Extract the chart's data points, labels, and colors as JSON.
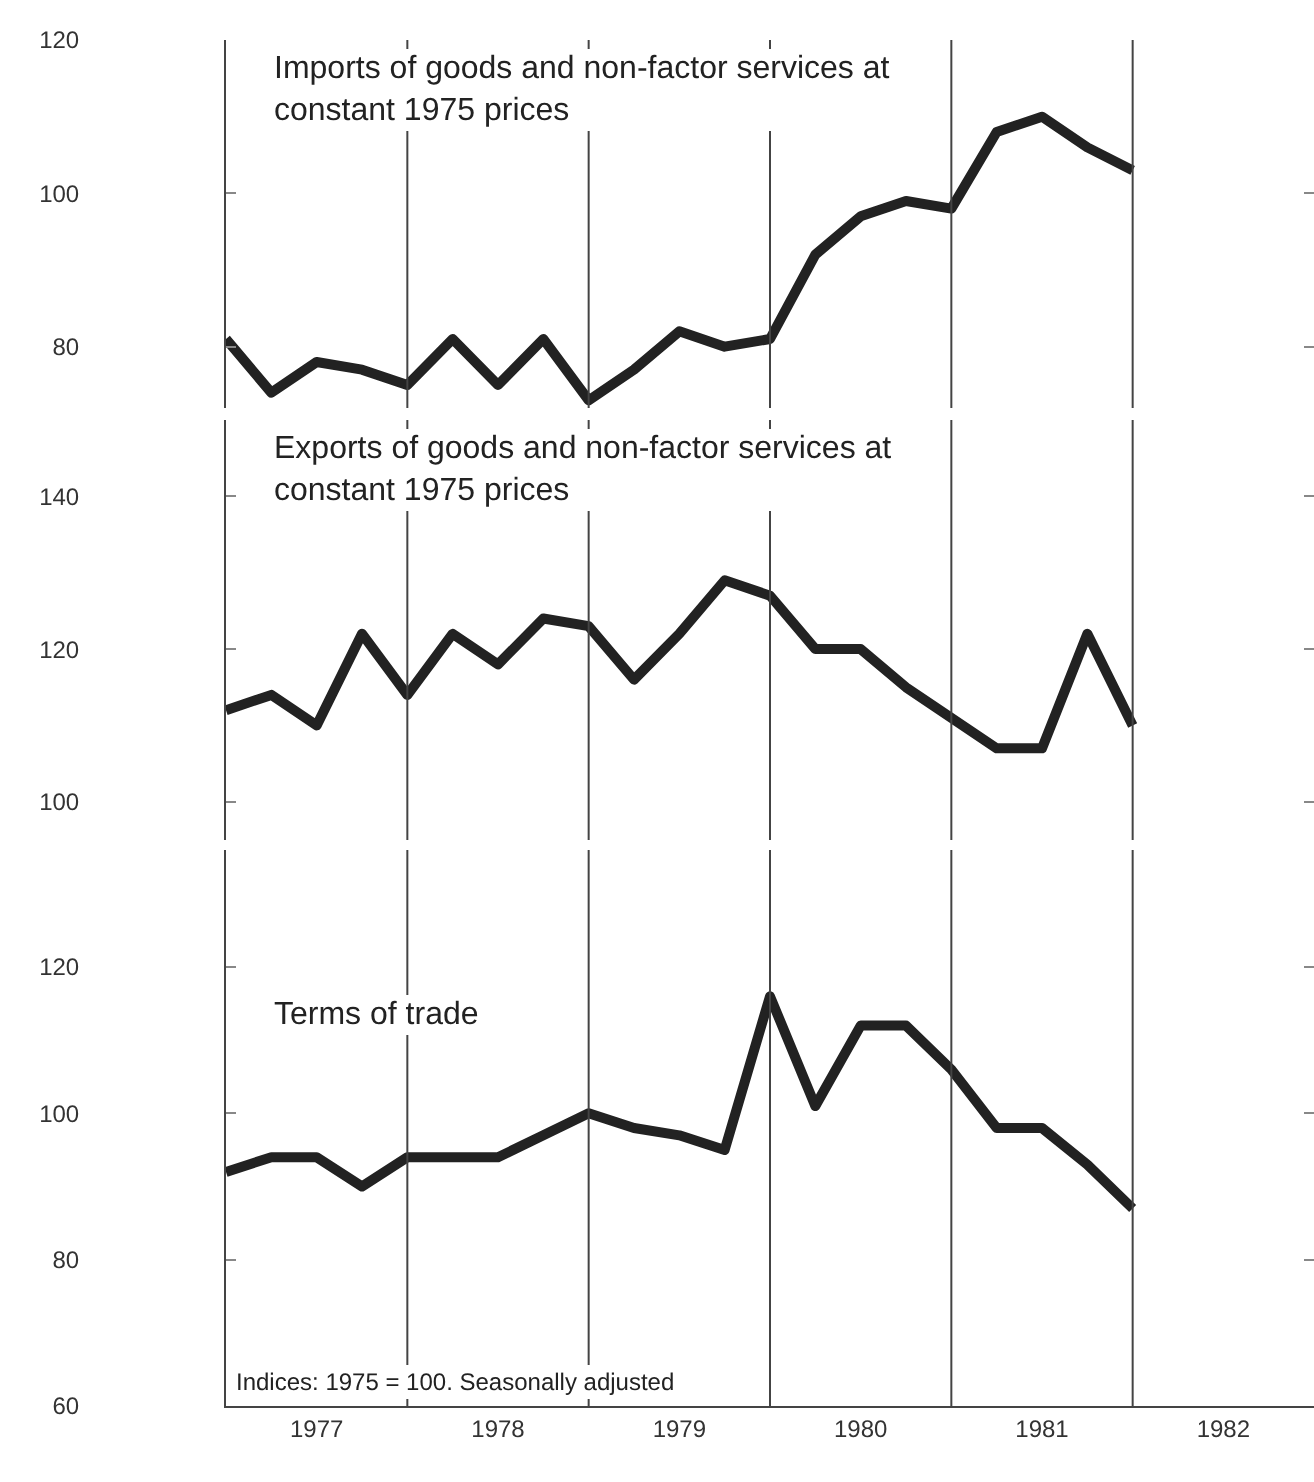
{
  "chart_data": [
    {
      "type": "line",
      "title": "Imports of goods and non-factor services at constant 1975 prices",
      "x": [
        1977,
        1977.25,
        1977.5,
        1977.75,
        1978,
        1978.25,
        1978.5,
        1978.75,
        1979,
        1979.25,
        1979.5,
        1979.75,
        1980,
        1980.25,
        1980.5,
        1980.75,
        1981,
        1981.25,
        1981.5,
        1981.75,
        1982
      ],
      "series": [
        {
          "color": "#222222",
          "values": [
            81,
            74,
            78,
            77,
            75,
            81,
            75,
            81,
            73,
            77,
            82,
            80,
            81,
            92,
            97,
            99,
            98,
            108,
            110,
            106,
            103
          ]
        }
      ],
      "xlim": [
        1977,
        1983
      ],
      "ylim": [
        72,
        120
      ],
      "yticks": [
        80,
        100,
        120
      ],
      "tick_labels": "y",
      "ref_lines": [
        {
          "axis": "x",
          "value": 1978
        },
        {
          "axis": "x",
          "value": 1979
        },
        {
          "axis": "x",
          "value": 1980
        },
        {
          "axis": "x",
          "value": 1981
        },
        {
          "axis": "x",
          "value": 1982
        }
      ]
    },
    {
      "type": "line",
      "title": "Exports of goods and non-factor services at constant 1975 prices",
      "x": [
        1977,
        1977.25,
        1977.5,
        1977.75,
        1978,
        1978.25,
        1978.5,
        1978.75,
        1979,
        1979.25,
        1979.5,
        1979.75,
        1980,
        1980.25,
        1980.5,
        1980.75,
        1981,
        1981.25,
        1981.5,
        1981.75,
        1982
      ],
      "series": [
        {
          "color": "#222222",
          "values": [
            112,
            114,
            110,
            122,
            114,
            122,
            118,
            124,
            123,
            116,
            122,
            129,
            127,
            120,
            120,
            115,
            111,
            107,
            107,
            122,
            110
          ]
        }
      ],
      "xlim": [
        1977,
        1983
      ],
      "ylim": [
        95,
        150
      ],
      "yticks": [
        100,
        120,
        140
      ],
      "tick_labels": "y",
      "ref_lines": [
        {
          "axis": "x",
          "value": 1978
        },
        {
          "axis": "x",
          "value": 1979
        },
        {
          "axis": "x",
          "value": 1980
        },
        {
          "axis": "x",
          "value": 1981
        },
        {
          "axis": "x",
          "value": 1982
        }
      ]
    },
    {
      "type": "line",
      "title": "Terms of trade",
      "x": [
        1977,
        1977.25,
        1977.5,
        1977.75,
        1978,
        1978.25,
        1978.5,
        1978.75,
        1979,
        1979.25,
        1979.5,
        1979.75,
        1980,
        1980.25,
        1980.5,
        1980.75,
        1981,
        1981.25,
        1981.5,
        1981.75,
        1982
      ],
      "series": [
        {
          "color": "#222222",
          "values": [
            92,
            94,
            94,
            90,
            94,
            94,
            94,
            97,
            100,
            98,
            97,
            95,
            116,
            101,
            112,
            112,
            106,
            98,
            98,
            93,
            87
          ]
        }
      ],
      "xlim": [
        1977,
        1983
      ],
      "xticks": [
        {
          "value": 1977.5,
          "label": "1977"
        },
        {
          "value": 1978.5,
          "label": "1978"
        },
        {
          "value": 1979.5,
          "label": "1979"
        },
        {
          "value": 1980.5,
          "label": "1980"
        },
        {
          "value": 1981.5,
          "label": "1981"
        },
        {
          "value": 1982.5,
          "label": "1982"
        }
      ],
      "ylim": [
        60,
        136
      ],
      "yticks": [
        60,
        80,
        100,
        120
      ],
      "ref_lines": [
        {
          "axis": "x",
          "value": 1978
        },
        {
          "axis": "x",
          "value": 1979
        },
        {
          "axis": "x",
          "value": 1980
        },
        {
          "axis": "x",
          "value": 1981
        },
        {
          "axis": "x",
          "value": 1982
        }
      ],
      "annotations": [
        "Indices: 1975 = 100. Seasonally adjusted"
      ]
    }
  ]
}
